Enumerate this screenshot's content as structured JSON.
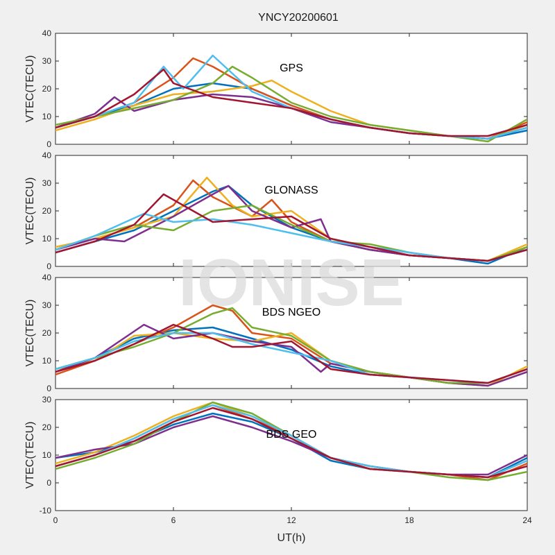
{
  "chart_data": {
    "type": "line",
    "title": "YNCY20200601",
    "watermark": "IONISE",
    "xlabel": "UT(h)",
    "xlim": [
      0,
      24
    ],
    "xticks": [
      "0",
      "6",
      "12",
      "18",
      "24"
    ],
    "colors": [
      "#0072bd",
      "#d95319",
      "#edb120",
      "#7e2f8e",
      "#77ac30",
      "#4dbeee",
      "#a2142f"
    ],
    "panels": [
      {
        "label": "GPS",
        "ylabel": "VTEC(TECU)",
        "ylim": [
          0,
          40
        ],
        "yticks": [
          "0",
          "10",
          "20",
          "30",
          "40"
        ],
        "series": [
          {
            "x": [
              0,
              2,
              4,
              6,
              8,
              10,
              12,
              14,
              16,
              18,
              20,
              22,
              24
            ],
            "y": [
              6,
              10,
              14,
              20,
              22,
              20,
              14,
              9,
              6,
              4,
              3,
              2,
              5
            ]
          },
          {
            "x": [
              0,
              2,
              4,
              6,
              7,
              8,
              10,
              12,
              14,
              16,
              18,
              20,
              22,
              24
            ],
            "y": [
              6,
              10,
              15,
              24,
              31,
              28,
              20,
              14,
              9,
              6,
              4,
              3,
              2,
              8
            ]
          },
          {
            "x": [
              0,
              2,
              4,
              6,
              8,
              10,
              11,
              12,
              14,
              16,
              18,
              20,
              22,
              24
            ],
            "y": [
              5,
              9,
              14,
              18,
              19,
              21,
              23,
              19,
              12,
              7,
              5,
              3,
              2,
              7
            ]
          },
          {
            "x": [
              0,
              2,
              3,
              4,
              6,
              8,
              10,
              12,
              14,
              16,
              18,
              20,
              22,
              24
            ],
            "y": [
              6,
              11,
              17,
              12,
              16,
              18,
              17,
              13,
              8,
              6,
              4,
              3,
              2,
              6
            ]
          },
          {
            "x": [
              0,
              2,
              4,
              6,
              8,
              9,
              10,
              12,
              14,
              16,
              18,
              20,
              22,
              24
            ],
            "y": [
              7,
              10,
              13,
              16,
              22,
              28,
              24,
              15,
              10,
              7,
              5,
              3,
              1,
              9
            ]
          },
          {
            "x": [
              0,
              2,
              4,
              5.5,
              6.5,
              8,
              10,
              12,
              14,
              16,
              18,
              20,
              22,
              24
            ],
            "y": [
              6,
              10,
              15,
              28,
              20,
              32,
              19,
              13,
              9,
              6,
              4,
              3,
              2,
              6
            ]
          },
          {
            "x": [
              0,
              2,
              4,
              5.5,
              6,
              8,
              10,
              12,
              14,
              16,
              18,
              20,
              22,
              24
            ],
            "y": [
              6,
              10,
              18,
              27,
              22,
              17,
              15,
              13,
              9,
              6,
              4,
              3,
              3,
              7
            ]
          }
        ]
      },
      {
        "label": "GLONASS",
        "ylabel": "VTEC(TECU)",
        "ylim": [
          0,
          40
        ],
        "yticks": [
          "0",
          "10",
          "20",
          "30",
          "40"
        ],
        "series": [
          {
            "x": [
              0,
              2,
              4,
              6,
              8,
              8.8,
              10,
              12,
              14,
              16,
              18,
              20,
              22,
              24
            ],
            "y": [
              5,
              9,
              13,
              20,
              27,
              29,
              22,
              14,
              9,
              6,
              4,
              3,
              1,
              7
            ]
          },
          {
            "x": [
              0,
              2,
              4,
              6,
              7,
              8,
              10,
              11,
              12,
              14,
              16,
              18,
              20,
              22,
              24
            ],
            "y": [
              6,
              10,
              14,
              22,
              31,
              25,
              18,
              24,
              16,
              9,
              6,
              4,
              3,
              2,
              7
            ]
          },
          {
            "x": [
              0,
              2,
              4,
              6,
              7.7,
              9,
              10,
              12,
              14,
              16,
              18,
              20,
              22,
              24
            ],
            "y": [
              7,
              10,
              14,
              18,
              32,
              22,
              18,
              20,
              10,
              7,
              5,
              3,
              2,
              8
            ]
          },
          {
            "x": [
              0,
              2,
              3.5,
              6,
              8,
              8.8,
              10,
              12,
              13.5,
              14,
              16,
              18,
              20,
              22,
              24
            ],
            "y": [
              6,
              10,
              9,
              18,
              26,
              29,
              20,
              14,
              17,
              9,
              6,
              4,
              3,
              2,
              6
            ]
          },
          {
            "x": [
              0,
              2,
              4,
              6,
              8,
              10,
              12,
              14,
              16,
              18,
              20,
              22,
              24
            ],
            "y": [
              6,
              11,
              15,
              13,
              20,
              22,
              15,
              9,
              8,
              5,
              3,
              2,
              7
            ]
          },
          {
            "x": [
              0,
              2,
              4.5,
              6,
              8,
              10,
              12,
              14,
              16,
              18,
              20,
              22,
              24
            ],
            "y": [
              6,
              11,
              19,
              16,
              17,
              15,
              12,
              9,
              7,
              5,
              3,
              2,
              6
            ]
          },
          {
            "x": [
              0,
              2,
              4,
              5.5,
              7,
              8,
              10,
              12,
              14,
              16,
              18,
              20,
              22,
              24
            ],
            "y": [
              5,
              9,
              15,
              26,
              20,
              16,
              17,
              18,
              10,
              7,
              4,
              3,
              2,
              6
            ]
          }
        ]
      },
      {
        "label": "BDS NGEO",
        "ylabel": "VTEC(TECU)",
        "ylim": [
          0,
          40
        ],
        "yticks": [
          "0",
          "10",
          "20",
          "30",
          "40"
        ],
        "series": [
          {
            "x": [
              0,
              2,
              4,
              6,
              8,
              10,
              12,
              14,
              16,
              18,
              20,
              22,
              24
            ],
            "y": [
              7,
              11,
              18,
              21,
              22,
              18,
              14,
              8,
              5,
              4,
              2,
              2,
              7
            ]
          },
          {
            "x": [
              0,
              2,
              4,
              6,
              8,
              9,
              10,
              12,
              14,
              16,
              18,
              20,
              22,
              24
            ],
            "y": [
              5,
              10,
              16,
              22,
              30,
              28,
              20,
              18,
              9,
              6,
              4,
              2,
              1,
              6
            ]
          },
          {
            "x": [
              0,
              2,
              4,
              6,
              8,
              10,
              12,
              14,
              16,
              18,
              20,
              22,
              24
            ],
            "y": [
              7,
              10,
              19,
              20,
              18,
              17,
              20,
              10,
              6,
              4,
              2,
              1,
              8
            ]
          },
          {
            "x": [
              0,
              2,
              4.5,
              6,
              8,
              10,
              12,
              13.5,
              14,
              16,
              18,
              20,
              22,
              24
            ],
            "y": [
              6,
              11,
              23,
              18,
              20,
              17,
              15,
              6,
              9,
              6,
              4,
              2,
              1,
              6
            ]
          },
          {
            "x": [
              0,
              2,
              4,
              6,
              8,
              9,
              10,
              12,
              14,
              16,
              18,
              20,
              22,
              24
            ],
            "y": [
              7,
              11,
              15,
              20,
              27,
              29,
              22,
              19,
              10,
              6,
              4,
              2,
              2,
              7
            ]
          },
          {
            "x": [
              0,
              2,
              4,
              6,
              8,
              10,
              12,
              14,
              16,
              18,
              20,
              22,
              24
            ],
            "y": [
              7,
              11,
              17,
              20,
              20,
              16,
              13,
              10,
              5,
              4,
              3,
              2,
              7
            ]
          },
          {
            "x": [
              0,
              2,
              4,
              6,
              8,
              9,
              10,
              12,
              14,
              16,
              18,
              20,
              22,
              24
            ],
            "y": [
              6,
              10,
              16,
              23,
              18,
              15,
              15,
              17,
              7,
              5,
              4,
              3,
              2,
              7
            ]
          }
        ]
      },
      {
        "label": "BDS GEO",
        "ylabel": "VTEC(TECU)",
        "ylim": [
          -10,
          30
        ],
        "yticks": [
          "-10",
          "0",
          "10",
          "20",
          "30"
        ],
        "series": [
          {
            "x": [
              0,
              2,
              4,
              6,
              8,
              10,
              12,
              14,
              16,
              18,
              20,
              22,
              24
            ],
            "y": [
              9,
              11,
              15,
              21,
              25,
              22,
              16,
              8,
              5,
              4,
              3,
              2,
              9
            ]
          },
          {
            "x": [
              0,
              2,
              4,
              6,
              8,
              10,
              12,
              14,
              16,
              18,
              20,
              22,
              24
            ],
            "y": [
              6,
              10,
              16,
              23,
              28,
              23,
              17,
              9,
              6,
              4,
              3,
              1,
              7
            ]
          },
          {
            "x": [
              0,
              2,
              4,
              6,
              8,
              10,
              12,
              14,
              16,
              18,
              20,
              22,
              24
            ],
            "y": [
              7,
              11,
              17,
              24,
              29,
              24,
              17,
              9,
              5,
              4,
              3,
              2,
              8
            ]
          },
          {
            "x": [
              0,
              2,
              4,
              6,
              8,
              10,
              12,
              14,
              16,
              18,
              20,
              22,
              24
            ],
            "y": [
              9,
              12,
              14,
              20,
              24,
              20,
              15,
              9,
              6,
              4,
              3,
              3,
              10
            ]
          },
          {
            "x": [
              0,
              2,
              4,
              6,
              8,
              10,
              12,
              14,
              16,
              18,
              20,
              22,
              24
            ],
            "y": [
              5,
              9,
              14,
              22,
              29,
              25,
              17,
              9,
              6,
              4,
              2,
              1,
              4
            ]
          },
          {
            "x": [
              0,
              2,
              4,
              6,
              8,
              10,
              12,
              14,
              16,
              18,
              20,
              22,
              24
            ],
            "y": [
              6,
              10,
              16,
              23,
              28,
              24,
              17,
              9,
              6,
              4,
              3,
              2,
              8
            ]
          },
          {
            "x": [
              0,
              2,
              4,
              6,
              8,
              10,
              12,
              14,
              16,
              18,
              20,
              22,
              24
            ],
            "y": [
              6,
              10,
              15,
              22,
              27,
              23,
              16,
              9,
              5,
              4,
              3,
              2,
              6
            ]
          }
        ]
      }
    ]
  }
}
